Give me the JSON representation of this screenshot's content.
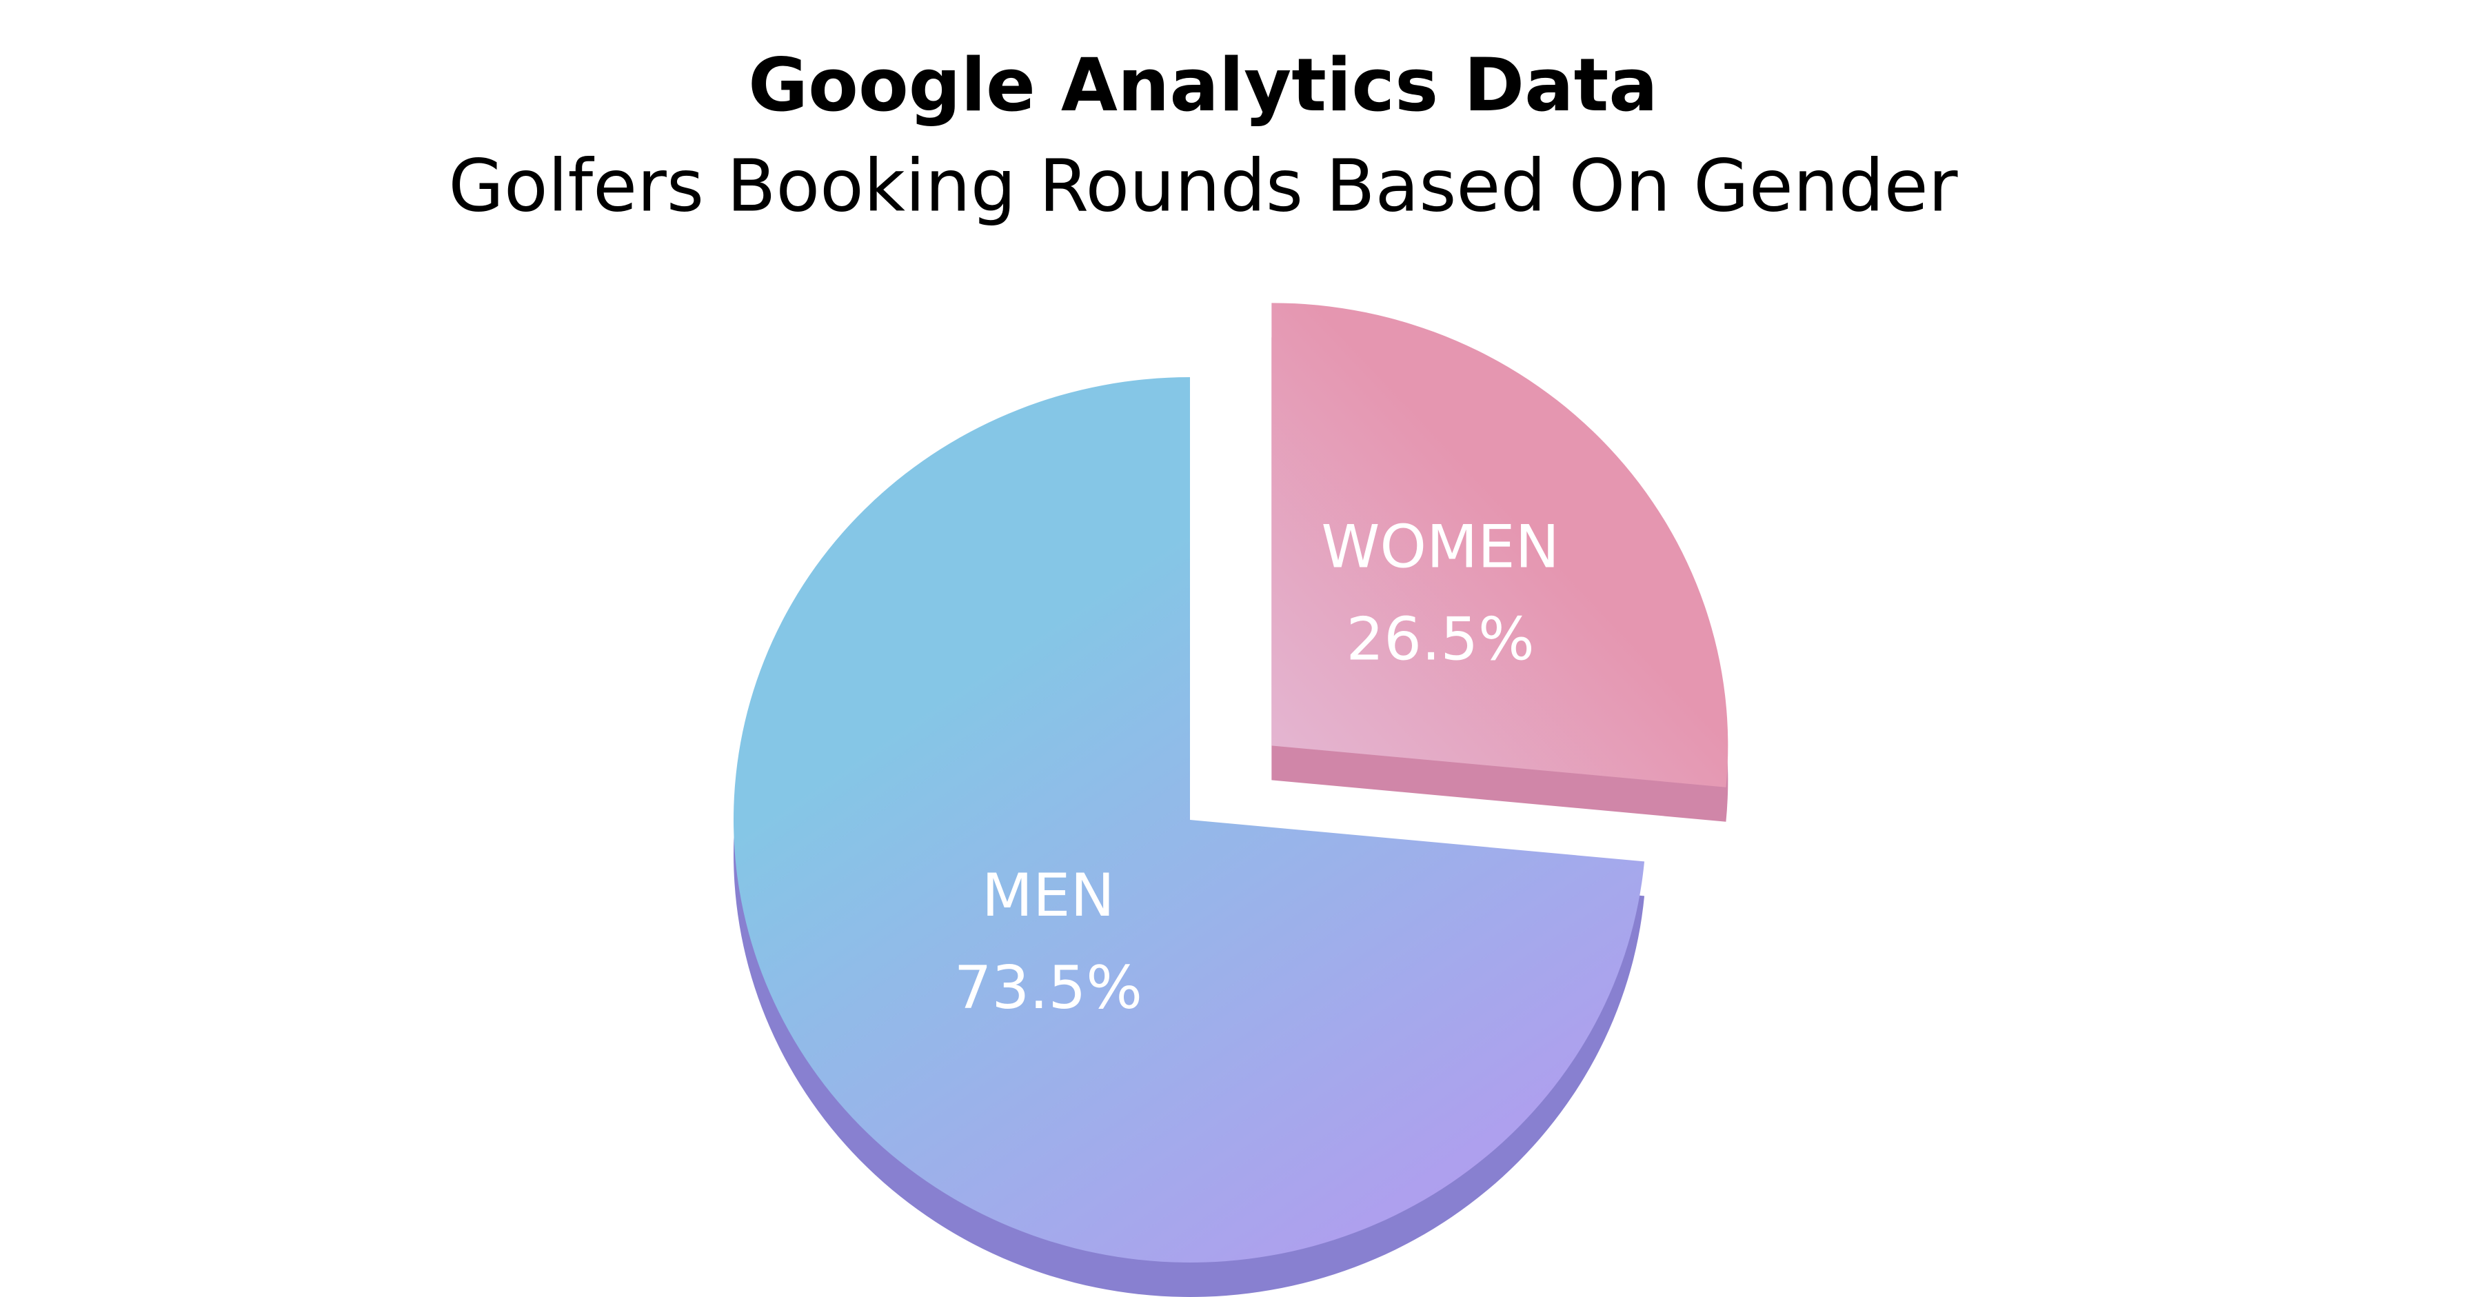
{
  "chart_data": {
    "type": "pie",
    "title": "Google Analytics Data",
    "subtitle": "Golfers Booking Rounds Based On Gender",
    "categories": [
      "MEN",
      "WOMEN"
    ],
    "values": [
      73.5,
      26.5
    ],
    "value_labels": [
      "73.5%",
      "26.5%"
    ],
    "colors": [
      "#85c6e6",
      "#e596b0"
    ]
  }
}
